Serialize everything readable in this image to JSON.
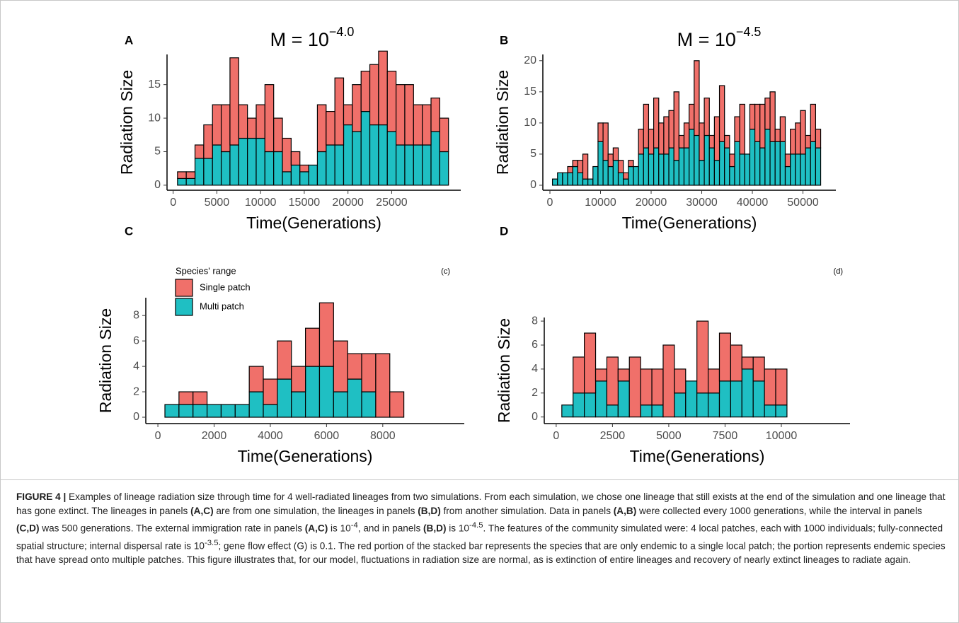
{
  "chart_data": [
    {
      "type": "stacked_bar",
      "panel_label": "A",
      "title": "M = 10",
      "title_superscript": "−4.0",
      "x_label": "Time(Generations)",
      "y_label": "Radiation Size",
      "x": [
        1000,
        2000,
        3000,
        4000,
        5000,
        6000,
        7000,
        8000,
        9000,
        10000,
        11000,
        12000,
        13000,
        14000,
        15000,
        16000,
        17000,
        18000,
        19000,
        20000,
        21000,
        22000,
        23000,
        24000,
        25000,
        26000,
        27000,
        28000,
        29000,
        30000,
        31000
      ],
      "series": [
        {
          "color": "#1fbfc3",
          "values": [
            1,
            1,
            4,
            4,
            6,
            5,
            6,
            7,
            7,
            7,
            5,
            5,
            2,
            3,
            2,
            3,
            5,
            6,
            6,
            9,
            8,
            11,
            9,
            9,
            8,
            6,
            6,
            6,
            6,
            8,
            5
          ]
        },
        {
          "color": "#f0706a",
          "values": [
            1,
            1,
            2,
            5,
            6,
            7,
            13,
            5,
            3,
            5,
            10,
            5,
            5,
            2,
            1,
            0,
            7,
            5,
            10,
            3,
            7,
            6,
            9,
            11,
            9,
            9,
            9,
            6,
            6,
            5,
            5
          ]
        }
      ],
      "xlim": [
        -700,
        32900
      ],
      "xticks": [
        0,
        5000,
        10000,
        15000,
        20000,
        25000
      ],
      "ylim": [
        -0.75,
        19.5
      ],
      "yticks": [
        0,
        5,
        10,
        15
      ]
    },
    {
      "type": "stacked_bar",
      "panel_label": "B",
      "title": "M = 10",
      "title_superscript": "−4.5",
      "x_label": "Time(Generations)",
      "y_label": "Radiation Size",
      "x": [
        1000,
        2000,
        3000,
        4000,
        5000,
        6000,
        7000,
        8000,
        9000,
        10000,
        11000,
        12000,
        13000,
        14000,
        15000,
        16000,
        17000,
        18000,
        19000,
        20000,
        21000,
        22000,
        23000,
        24000,
        25000,
        26000,
        27000,
        28000,
        29000,
        30000,
        31000,
        32000,
        33000,
        34000,
        35000,
        36000,
        37000,
        38000,
        39000,
        40000,
        41000,
        42000,
        43000,
        44000,
        45000,
        46000,
        47000,
        48000,
        49000,
        50000,
        51000,
        52000,
        53000
      ],
      "series": [
        {
          "color": "#1fbfc3",
          "values": [
            1,
            2,
            2,
            2,
            3,
            2,
            1,
            1,
            3,
            7,
            4,
            3,
            4,
            2,
            1,
            3,
            3,
            5,
            6,
            5,
            6,
            5,
            5,
            6,
            4,
            6,
            6,
            9,
            8,
            4,
            8,
            6,
            4,
            7,
            6,
            3,
            7,
            5,
            5,
            9,
            7,
            6,
            9,
            7,
            7,
            7,
            3,
            5,
            5,
            5,
            6,
            7,
            6
          ]
        },
        {
          "color": "#f0706a",
          "values": [
            0,
            0,
            0,
            1,
            1,
            2,
            4,
            0,
            0,
            3,
            6,
            2,
            2,
            2,
            1,
            1,
            0,
            4,
            7,
            4,
            8,
            5,
            6,
            6,
            11,
            2,
            4,
            4,
            12,
            6,
            6,
            2,
            7,
            9,
            2,
            2,
            4,
            8,
            0,
            4,
            6,
            7,
            5,
            8,
            2,
            4,
            2,
            4,
            5,
            7,
            2,
            6,
            3
          ]
        }
      ],
      "xlim": [
        -1400,
        56500
      ],
      "xticks": [
        0,
        10000,
        20000,
        30000,
        40000,
        50000
      ],
      "ylim": [
        -0.8,
        21
      ],
      "yticks": [
        0,
        5,
        10,
        15,
        20
      ]
    },
    {
      "type": "stacked_bar",
      "panel_label": "C",
      "annotation": "(c)",
      "x_label": "Time(Generations)",
      "y_label": "Radiation Size",
      "legend": true,
      "legend_title": "Species' range",
      "legend_corner": "top-left",
      "x": [
        500,
        1000,
        1500,
        2000,
        2500,
        3000,
        3500,
        4000,
        4500,
        5000,
        5500,
        6000,
        6500,
        7000,
        7500,
        8000,
        8500,
        9000,
        9500
      ],
      "series": [
        {
          "name": "Multi patch",
          "color": "#1fbfc3",
          "values": [
            1,
            1,
            1,
            1,
            1,
            1,
            2,
            1,
            3,
            2,
            4,
            4,
            2,
            3,
            2,
            0,
            0,
            0,
            0
          ]
        },
        {
          "name": "Single patch",
          "color": "#f0706a",
          "values": [
            0,
            1,
            1,
            0,
            0,
            0,
            2,
            2,
            3,
            2,
            3,
            5,
            4,
            2,
            3,
            5,
            2,
            0,
            0
          ]
        }
      ],
      "xlim": [
        -430,
        10900
      ],
      "xticks": [
        0,
        2000,
        4000,
        6000,
        8000
      ],
      "ylim": [
        -0.5,
        9.4
      ],
      "yticks": [
        0,
        2,
        4,
        6,
        8
      ]
    },
    {
      "type": "stacked_bar",
      "panel_label": "D",
      "annotation": "(d)",
      "x_label": "Time(Generations)",
      "y_label": "Radiation Size",
      "x": [
        500,
        1000,
        1500,
        2000,
        2500,
        3000,
        3500,
        4000,
        4500,
        5000,
        5500,
        6000,
        6500,
        7000,
        7500,
        8000,
        8500,
        9000,
        9500,
        10000,
        10500,
        11000,
        11500
      ],
      "series": [
        {
          "color": "#1fbfc3",
          "values": [
            1,
            2,
            2,
            3,
            1,
            3,
            0,
            1,
            1,
            0,
            2,
            3,
            2,
            2,
            3,
            3,
            4,
            3,
            1,
            1,
            0,
            0,
            0
          ]
        },
        {
          "color": "#f0706a",
          "values": [
            0,
            3,
            5,
            1,
            4,
            1,
            5,
            3,
            3,
            6,
            2,
            0,
            6,
            2,
            4,
            3,
            1,
            2,
            3,
            3,
            0,
            0,
            0
          ]
        }
      ],
      "xlim": [
        -530,
        13050
      ],
      "xticks": [
        0,
        2500,
        5000,
        7500,
        10000
      ],
      "ylim": [
        -0.55,
        8.3
      ],
      "yticks": [
        0,
        2,
        4,
        6,
        8
      ]
    }
  ],
  "caption": {
    "label": "FIGURE 4 |",
    "parts": [
      " Examples of lineage radiation size through time for 4 well-radiated lineages from two simulations. From each simulation, we chose one lineage that still exists at the end of the simulation and one lineage that has gone extinct. The lineages in panels ",
      "(A,C)",
      " are from one simulation, the lineages in panels ",
      "(B,D)",
      " from another simulation. Data in panels ",
      "(A,B)",
      " were collected every 1000 generations, while the interval in panels ",
      "(C,D)",
      " was 500 generations. The external immigration rate in panels ",
      "(A,C)",
      " is 10",
      "-4",
      ", and in panels ",
      "(B,D)",
      " is 10",
      "-4.5",
      ". The features of the community simulated were: 4 local patches, each with 1000 individuals; fully-connected spatial structure; internal dispersal rate is 10",
      "-3.5",
      "; gene flow effect (G) is 0.1. The red portion of the stacked bar represents the species that are only endemic to a single local patch; the portion represents endemic species that have spread onto multiple patches. This figure illustrates that, for our model, fluctuations in radiation size are normal, as is extinction of entire lineages and recovery of nearly extinct lineages to radiate again."
    ]
  }
}
